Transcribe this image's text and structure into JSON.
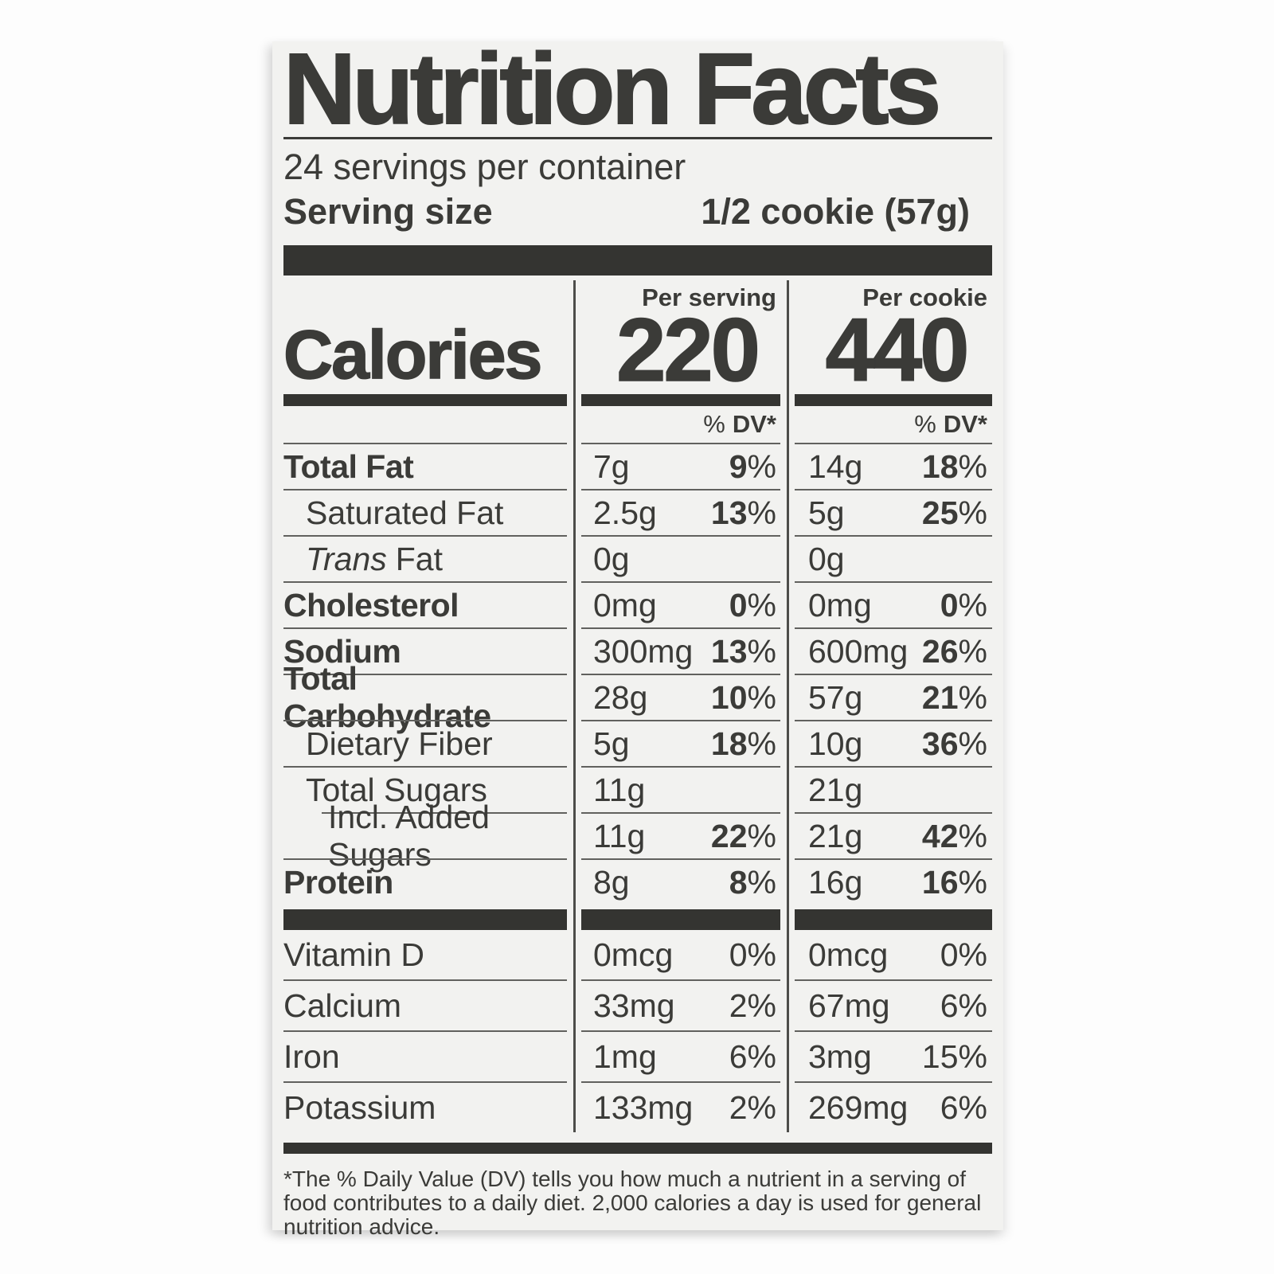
{
  "colors": {
    "ink": "#3b3b38",
    "bar": "#343431",
    "hairline": "#61615e",
    "label_bg": "#f2f2f0",
    "page_bg": "#fdfdfd"
  },
  "label": {
    "title": "Nutrition Facts",
    "servings_per_container": "24 servings per container",
    "serving_size": {
      "label": "Serving size",
      "value": "1/2 cookie (57g)"
    },
    "columns": {
      "serving": "Per serving",
      "cookie": "Per cookie"
    },
    "calories": {
      "label": "Calories",
      "per_serving": "220",
      "per_cookie": "440"
    },
    "dv_header": {
      "pct": "%",
      "dv": "DV*"
    },
    "nutrients": [
      {
        "name": "Total Fat",
        "bold": true,
        "indent": 0,
        "serving_amount": "7g",
        "serving_dv": "9%",
        "cookie_amount": "14g",
        "cookie_dv": "18%"
      },
      {
        "name": "Saturated Fat",
        "bold": false,
        "indent": 1,
        "serving_amount": "2.5g",
        "serving_dv": "13%",
        "cookie_amount": "5g",
        "cookie_dv": "25%"
      },
      {
        "name": "Fat",
        "italic_prefix": "Trans",
        "bold": false,
        "indent": 1,
        "serving_amount": "0g",
        "serving_dv": "",
        "cookie_amount": "0g",
        "cookie_dv": ""
      },
      {
        "name": "Cholesterol",
        "bold": true,
        "indent": 0,
        "serving_amount": "0mg",
        "serving_dv": "0%",
        "cookie_amount": "0mg",
        "cookie_dv": "0%"
      },
      {
        "name": "Sodium",
        "bold": true,
        "indent": 0,
        "serving_amount": "300mg",
        "serving_dv": "13%",
        "cookie_amount": "600mg",
        "cookie_dv": "26%"
      },
      {
        "name": "Total Carbohydrate",
        "bold": true,
        "indent": 0,
        "serving_amount": "28g",
        "serving_dv": "10%",
        "cookie_amount": "57g",
        "cookie_dv": "21%"
      },
      {
        "name": "Dietary Fiber",
        "bold": false,
        "indent": 1,
        "serving_amount": "5g",
        "serving_dv": "18%",
        "cookie_amount": "10g",
        "cookie_dv": "36%"
      },
      {
        "name": "Total Sugars",
        "bold": false,
        "indent": 1,
        "serving_amount": "11g",
        "serving_dv": "",
        "cookie_amount": "21g",
        "cookie_dv": ""
      },
      {
        "name": "Incl. Added Sugars",
        "bold": false,
        "indent": 2,
        "sep_indent": 2,
        "serving_amount": "11g",
        "serving_dv": "22%",
        "cookie_amount": "21g",
        "cookie_dv": "42%"
      },
      {
        "name": "Protein",
        "bold": true,
        "indent": 0,
        "serving_amount": "8g",
        "serving_dv": "8%",
        "cookie_amount": "16g",
        "cookie_dv": "16%"
      }
    ],
    "micronutrients": [
      {
        "name": "Vitamin D",
        "serving_amount": "0mcg",
        "serving_dv": "0%",
        "cookie_amount": "0mcg",
        "cookie_dv": "0%"
      },
      {
        "name": "Calcium",
        "serving_amount": "33mg",
        "serving_dv": "2%",
        "cookie_amount": "67mg",
        "cookie_dv": "6%"
      },
      {
        "name": "Iron",
        "serving_amount": "1mg",
        "serving_dv": "6%",
        "cookie_amount": "3mg",
        "cookie_dv": "15%"
      },
      {
        "name": "Potassium",
        "serving_amount": "133mg",
        "serving_dv": "2%",
        "cookie_amount": "269mg",
        "cookie_dv": "6%"
      }
    ],
    "footnote_lines": [
      "*The % Daily Value (DV) tells you how much a nutrient in a serving of",
      "food contributes to a daily diet. 2,000 calories a day is used for general",
      "nutrition advice."
    ]
  }
}
